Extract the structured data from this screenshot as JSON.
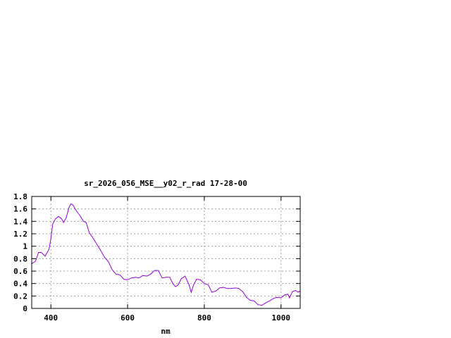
{
  "chart_data": {
    "type": "line",
    "title": "sr_2026_056_MSE__y02_r_rad 17-28-00",
    "xlabel": "nm",
    "ylabel": "",
    "xlim": [
      350,
      1050
    ],
    "ylim": [
      0,
      1.8
    ],
    "x_ticks": [
      400,
      600,
      800,
      1000
    ],
    "x_tick_labels": [
      "400",
      "600",
      "800",
      "1000"
    ],
    "y_ticks": [
      0,
      0.2,
      0.4,
      0.6,
      0.8,
      1,
      1.2,
      1.4,
      1.6,
      1.8
    ],
    "y_tick_labels": [
      "0",
      "0.2",
      "0.4",
      "0.6",
      "0.8",
      "1",
      "1.2",
      "1.4",
      "1.6",
      "1.8"
    ],
    "grid": true,
    "line_color": "#9400d3",
    "series": [
      {
        "values": [
          [
            350,
            0.72
          ],
          [
            360,
            0.76
          ],
          [
            368,
            0.9
          ],
          [
            375,
            0.9
          ],
          [
            385,
            0.84
          ],
          [
            395,
            0.95
          ],
          [
            400,
            1.12
          ],
          [
            405,
            1.36
          ],
          [
            412,
            1.44
          ],
          [
            420,
            1.48
          ],
          [
            428,
            1.44
          ],
          [
            433,
            1.38
          ],
          [
            440,
            1.46
          ],
          [
            447,
            1.62
          ],
          [
            452,
            1.68
          ],
          [
            458,
            1.66
          ],
          [
            465,
            1.58
          ],
          [
            475,
            1.5
          ],
          [
            485,
            1.4
          ],
          [
            492,
            1.38
          ],
          [
            500,
            1.22
          ],
          [
            510,
            1.13
          ],
          [
            520,
            1.03
          ],
          [
            530,
            0.93
          ],
          [
            540,
            0.82
          ],
          [
            550,
            0.75
          ],
          [
            560,
            0.62
          ],
          [
            570,
            0.55
          ],
          [
            580,
            0.54
          ],
          [
            590,
            0.47
          ],
          [
            600,
            0.46
          ],
          [
            610,
            0.49
          ],
          [
            620,
            0.5
          ],
          [
            630,
            0.49
          ],
          [
            640,
            0.53
          ],
          [
            650,
            0.52
          ],
          [
            660,
            0.55
          ],
          [
            670,
            0.61
          ],
          [
            680,
            0.61
          ],
          [
            690,
            0.49
          ],
          [
            700,
            0.5
          ],
          [
            710,
            0.5
          ],
          [
            718,
            0.4
          ],
          [
            725,
            0.35
          ],
          [
            732,
            0.38
          ],
          [
            740,
            0.48
          ],
          [
            750,
            0.52
          ],
          [
            760,
            0.38
          ],
          [
            766,
            0.26
          ],
          [
            772,
            0.38
          ],
          [
            780,
            0.47
          ],
          [
            790,
            0.46
          ],
          [
            800,
            0.4
          ],
          [
            810,
            0.38
          ],
          [
            820,
            0.26
          ],
          [
            830,
            0.28
          ],
          [
            840,
            0.33
          ],
          [
            850,
            0.34
          ],
          [
            860,
            0.32
          ],
          [
            870,
            0.32
          ],
          [
            880,
            0.33
          ],
          [
            890,
            0.32
          ],
          [
            900,
            0.27
          ],
          [
            910,
            0.18
          ],
          [
            920,
            0.13
          ],
          [
            930,
            0.12
          ],
          [
            940,
            0.06
          ],
          [
            950,
            0.05
          ],
          [
            960,
            0.09
          ],
          [
            970,
            0.12
          ],
          [
            980,
            0.16
          ],
          [
            990,
            0.18
          ],
          [
            1000,
            0.17
          ],
          [
            1010,
            0.22
          ],
          [
            1018,
            0.23
          ],
          [
            1022,
            0.17
          ],
          [
            1030,
            0.27
          ],
          [
            1038,
            0.29
          ],
          [
            1044,
            0.26
          ],
          [
            1050,
            0.28
          ]
        ]
      }
    ]
  }
}
